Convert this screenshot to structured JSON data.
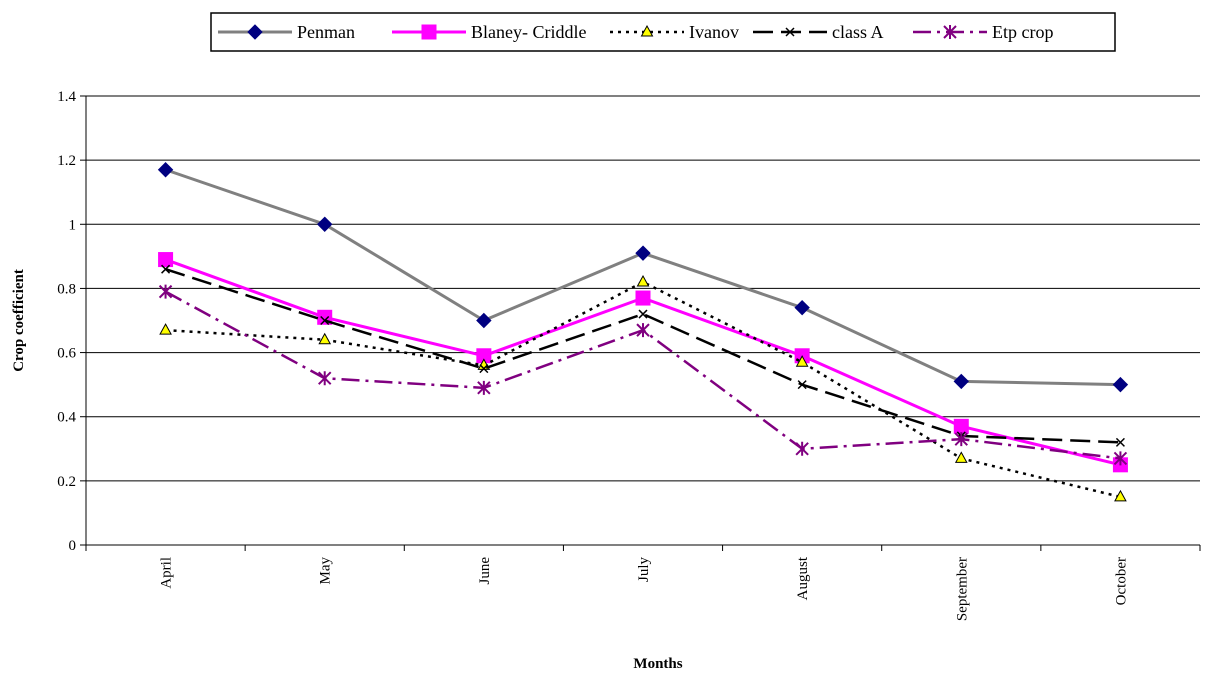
{
  "chart_data": {
    "type": "line",
    "categories": [
      "April",
      "May",
      "June",
      "July",
      "August",
      "September",
      "October"
    ],
    "series": [
      {
        "name": "Penman",
        "values": [
          1.17,
          1.0,
          0.7,
          0.91,
          0.74,
          0.51,
          0.5
        ],
        "color": "#808080",
        "marker": "diamond",
        "marker_color": "#000080",
        "dash": "solid"
      },
      {
        "name": "Blaney- Criddle",
        "values": [
          0.89,
          0.71,
          0.59,
          0.77,
          0.59,
          0.37,
          0.25
        ],
        "color": "#ff00ff",
        "marker": "square",
        "marker_color": "#ff00ff",
        "dash": "solid"
      },
      {
        "name": "Ivanov",
        "values": [
          0.67,
          0.64,
          0.56,
          0.82,
          0.57,
          0.27,
          0.15
        ],
        "color": "#000000",
        "marker": "triangle",
        "marker_color": "#ffff00",
        "dash": "dotted"
      },
      {
        "name": "class A",
        "values": [
          0.86,
          0.7,
          0.55,
          0.72,
          0.5,
          0.34,
          0.32
        ],
        "color": "#000000",
        "marker": "x",
        "marker_color": "#000000",
        "dash": "longdash"
      },
      {
        "name": "Etp crop",
        "values": [
          0.79,
          0.52,
          0.49,
          0.67,
          0.3,
          0.33,
          0.27
        ],
        "color": "#800080",
        "marker": "asterisk",
        "marker_color": "#800080",
        "dash": "dashdot"
      }
    ],
    "xlabel": "Months",
    "ylabel": "Crop coefficient",
    "ylim": [
      0,
      1.4
    ],
    "yticks": [
      "0",
      "0.2",
      "0.4",
      "0.6",
      "0.8",
      "1",
      "1.2",
      "1.4"
    ],
    "grid": "horizontal",
    "legend": "top-center"
  }
}
